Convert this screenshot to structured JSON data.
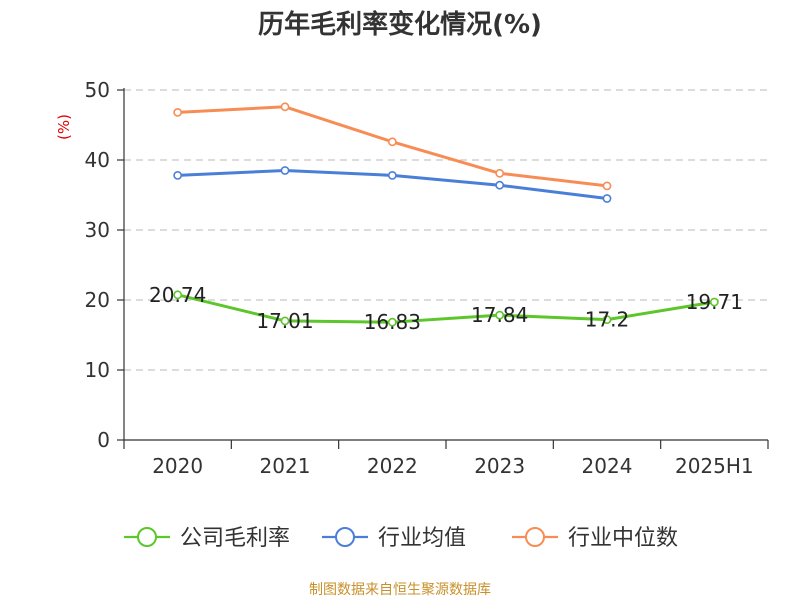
{
  "chart_data": {
    "type": "line",
    "title": "历年毛利率变化情况(%)",
    "ylabel": "(%)",
    "xlabel": "",
    "ylim": [
      0,
      50
    ],
    "yticks": [
      0,
      10,
      20,
      30,
      40,
      50
    ],
    "grid": true,
    "legend_position": "bottom",
    "categories": [
      "2020",
      "2021",
      "2022",
      "2023",
      "2024",
      "2025H1"
    ],
    "series": [
      {
        "name": "公司毛利率",
        "color": "#5cc62a",
        "values": [
          20.74,
          17.01,
          16.83,
          17.84,
          17.2,
          19.71
        ],
        "labels": [
          "20.74",
          "17.01",
          "16.83",
          "17.84",
          "17.2",
          "19.71"
        ]
      },
      {
        "name": "行业均值",
        "color": "#4a7fd8",
        "values": [
          37.8,
          38.5,
          37.8,
          36.4,
          34.5,
          null
        ]
      },
      {
        "name": "行业中位数",
        "color": "#f78d55",
        "values": [
          46.8,
          47.6,
          42.6,
          38.1,
          36.3,
          null
        ]
      }
    ]
  },
  "footer": {
    "source": "制图数据来自恒生聚源数据库",
    "source_color": "#c8902a"
  },
  "colors": {
    "axis": "#333333",
    "grid": "#c8c8c8"
  }
}
